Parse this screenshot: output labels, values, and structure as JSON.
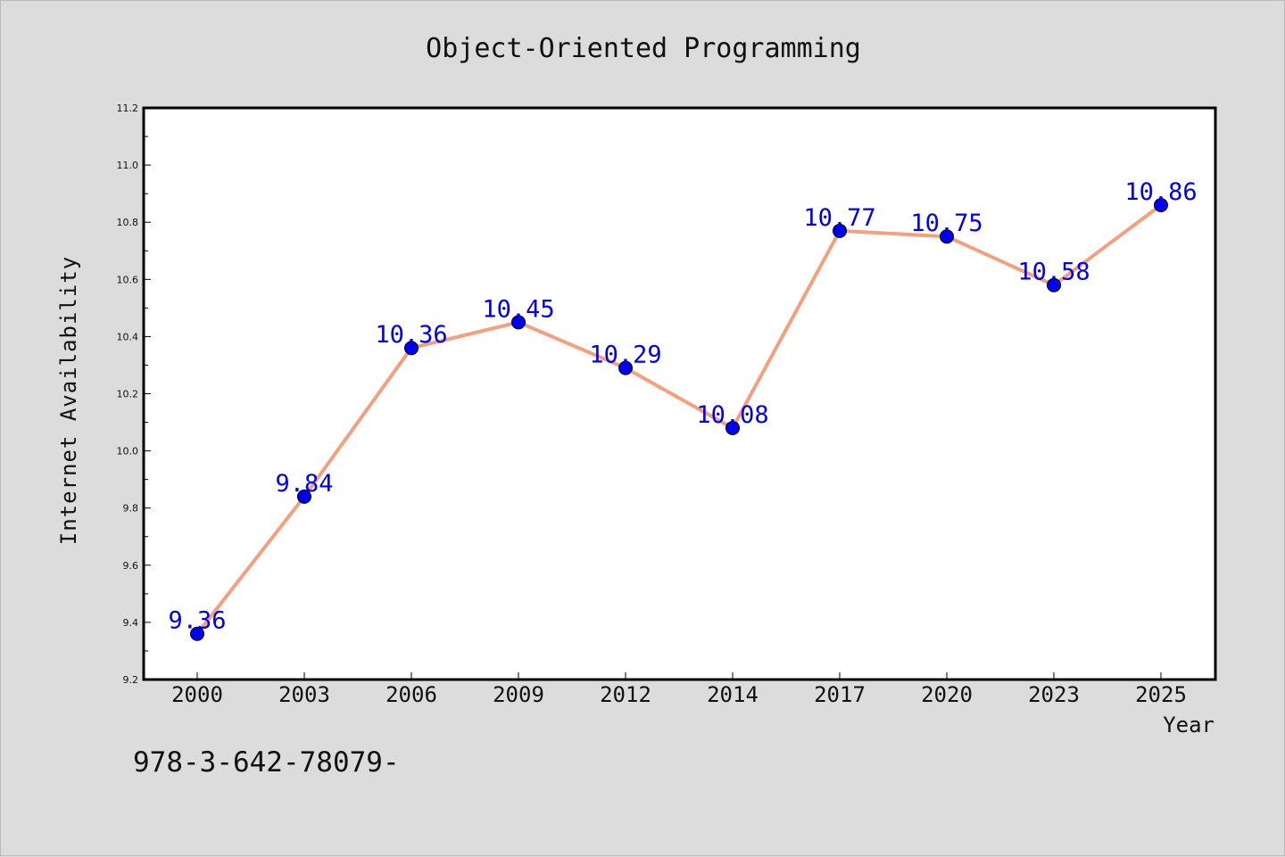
{
  "chart_data": {
    "type": "line",
    "title": "Object-Oriented Programming",
    "xlabel": "Year",
    "ylabel": "Internet Availability",
    "categories": [
      "2000",
      "2003",
      "2006",
      "2009",
      "2012",
      "2014",
      "2017",
      "2020",
      "2023",
      "2025"
    ],
    "series": [
      {
        "values": [
          9.36,
          9.84,
          10.36,
          10.45,
          10.29,
          10.08,
          10.77,
          10.75,
          10.58,
          10.86
        ],
        "labels": [
          "9.36",
          "9.84",
          "10.36",
          "10.45",
          "10.29",
          "10.08",
          "10.77",
          "10.75",
          "10.58",
          "10.86"
        ],
        "line_color": "#f4a07e",
        "marker_color": "#0000ee",
        "label_color": "#0000ee"
      }
    ],
    "ylim": [
      9.2,
      11.2
    ],
    "yticks": [
      "9.2",
      "9.4",
      "9.6",
      "9.8",
      "10.0",
      "10.2",
      "10.4",
      "10.6",
      "10.8",
      "11.0",
      "11.2"
    ],
    "grid": false,
    "legend": "none",
    "annotation": "978-3-642-78079-"
  },
  "colors": {
    "background": "#dcdcdc",
    "plot_area": "#ffffff",
    "axes": "#000000"
  }
}
